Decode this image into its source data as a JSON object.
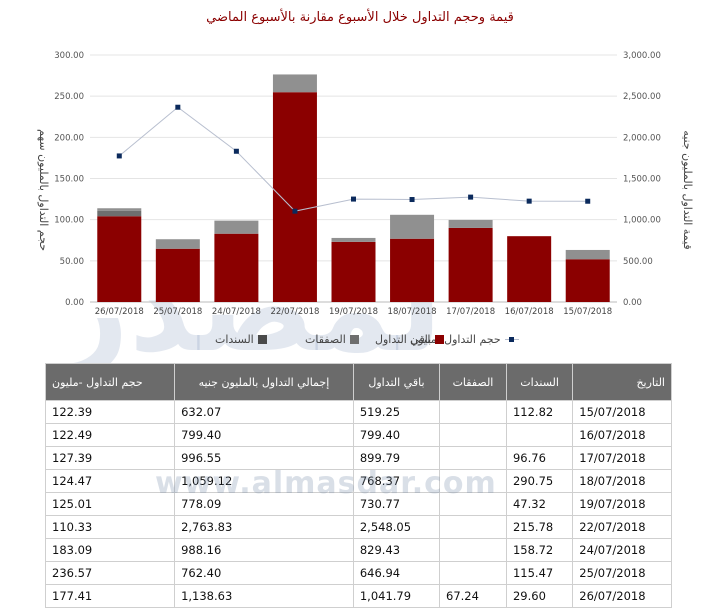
{
  "title": "قيمة وحجم التداول خلال الأسبوع مقارنة بالأسبوع الماضي",
  "chart_data": {
    "type": "bar",
    "title": "قيمة وحجم التداول خلال الأسبوع مقارنة بالأسبوع الماضي",
    "categories": [
      "26/07/2018",
      "25/07/2018",
      "24/07/2018",
      "22/07/2018",
      "19/07/2018",
      "18/07/2018",
      "17/07/2018",
      "16/07/2018",
      "15/07/2018"
    ],
    "ylabel_left": "حجم التداول بالمليون سهم",
    "ylabel_right": "قيمة التداول بالمليون جنيه",
    "ylim_left": [
      0,
      300
    ],
    "ylim_right": [
      0,
      3000
    ],
    "yticks_left": [
      "0.00",
      "50.00",
      "100.00",
      "150.00",
      "200.00",
      "250.00",
      "300.00"
    ],
    "yticks_right": [
      "0.00",
      "500.00",
      "1,000.00",
      "1,500.00",
      "2,000.00",
      "2,500.00",
      "3,000.00"
    ],
    "stacked_series": [
      {
        "name": "باقي التداول",
        "color": "#8b0000",
        "axis": "right",
        "values": [
          1041.79,
          646.94,
          829.43,
          2548.05,
          730.77,
          768.37,
          899.79,
          799.4,
          519.25
        ]
      },
      {
        "name": "الصفقات",
        "color": "#6e6e6e",
        "axis": "right",
        "values": [
          67.24,
          0,
          0,
          0,
          0,
          0,
          0,
          0,
          0
        ]
      },
      {
        "name": "السندات",
        "color": "#909090",
        "axis": "right",
        "values": [
          29.6,
          115.47,
          158.72,
          215.78,
          47.32,
          290.75,
          96.76,
          0,
          112.82
        ]
      }
    ],
    "line_series": {
      "name": "حجم التداول -مليون",
      "color": "#0b2a5c",
      "axis": "left",
      "values": [
        177.41,
        236.57,
        183.09,
        110.33,
        125.01,
        124.47,
        127.39,
        122.49,
        122.39
      ]
    },
    "grid": true,
    "legend_position": "bottom"
  },
  "legend": [
    {
      "label": "حجم التداول -مليون",
      "kind": "line"
    },
    {
      "label": "باقي التداول",
      "color": "#8b0000"
    },
    {
      "label": "الصفقات",
      "color": "#6e6e6e"
    },
    {
      "label": "السندات",
      "color": "#4a4a4a"
    }
  ],
  "table": {
    "headers": [
      "حجم التداول -مليون",
      "إجمالي التداول بالمليون جنيه",
      "باقي التداول",
      "الصفقات",
      "السندات",
      "التاريخ"
    ],
    "rows": [
      [
        "122.39",
        "632.07",
        "519.25",
        "",
        "112.82",
        "15/07/2018"
      ],
      [
        "122.49",
        "799.40",
        "799.40",
        "",
        "",
        "16/07/2018"
      ],
      [
        "127.39",
        "996.55",
        "899.79",
        "",
        "96.76",
        "17/07/2018"
      ],
      [
        "124.47",
        "1,059.12",
        "768.37",
        "",
        "290.75",
        "18/07/2018"
      ],
      [
        "125.01",
        "778.09",
        "730.77",
        "",
        "47.32",
        "19/07/2018"
      ],
      [
        "110.33",
        "2,763.83",
        "2,548.05",
        "",
        "215.78",
        "22/07/2018"
      ],
      [
        "183.09",
        "988.16",
        "829.43",
        "",
        "158.72",
        "24/07/2018"
      ],
      [
        "236.57",
        "762.40",
        "646.94",
        "",
        "115.47",
        "25/07/2018"
      ],
      [
        "177.41",
        "1,138.63",
        "1,041.79",
        "67.24",
        "29.60",
        "26/07/2018"
      ]
    ]
  },
  "watermark": "www.almasdar.com"
}
